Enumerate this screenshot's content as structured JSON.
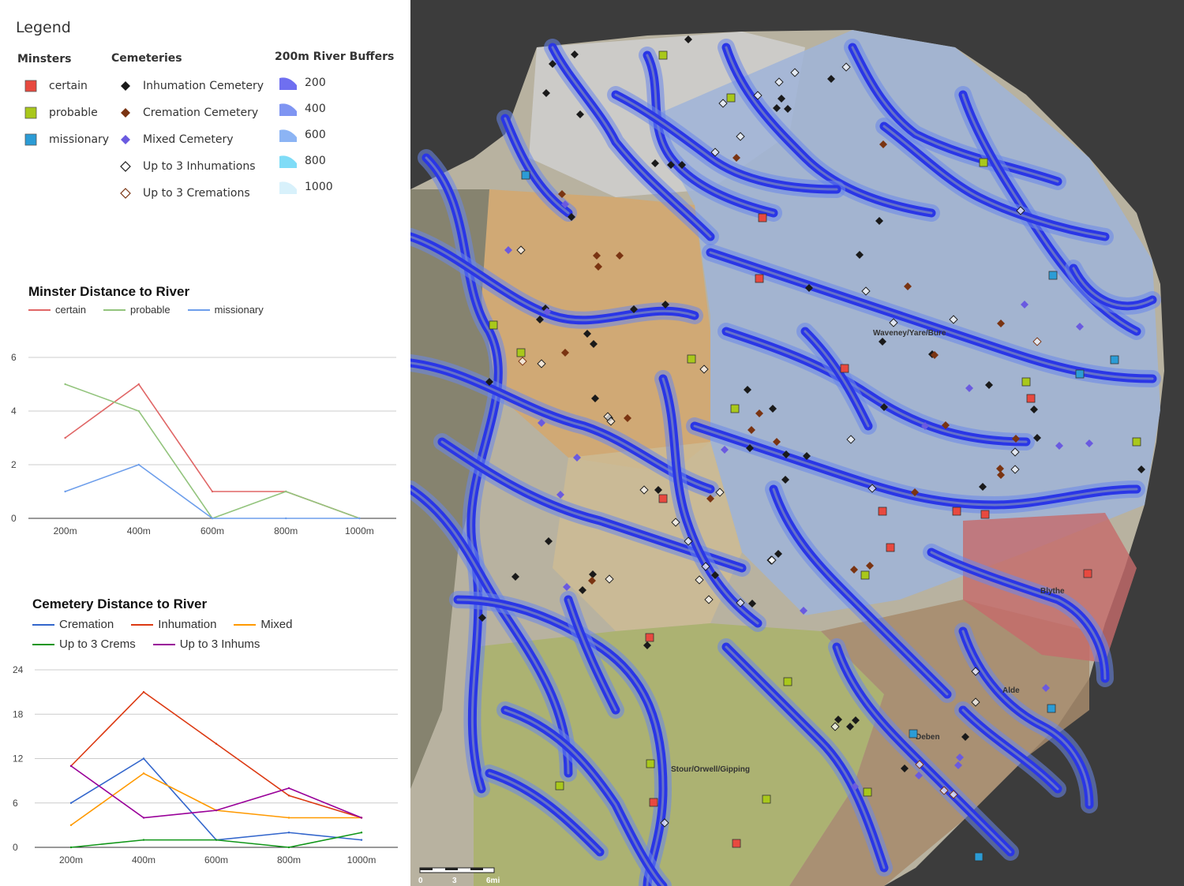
{
  "legend": {
    "title": "Legend",
    "minsters": {
      "heading": "Minsters",
      "items": [
        {
          "label": "certain",
          "color": "#e8493f",
          "icon": "square-icon"
        },
        {
          "label": "probable",
          "color": "#a9c81b",
          "icon": "square-icon"
        },
        {
          "label": "missionary",
          "color": "#2b9cd6",
          "icon": "square-icon"
        }
      ]
    },
    "cemeteries": {
      "heading": "Cemeteries",
      "items": [
        {
          "label": "Inhumation Cemetery",
          "color": "#1a1a1a",
          "icon": "filled-diamond-icon"
        },
        {
          "label": "Cremation Cemetery",
          "color": "#7a3412",
          "icon": "filled-diamond-icon"
        },
        {
          "label": "Mixed Cemetery",
          "color": "#6a5ae0",
          "icon": "filled-diamond-icon"
        },
        {
          "label": "Up to 3 Inhumations",
          "color": "#1a1a1a",
          "icon": "hollow-diamond-icon"
        },
        {
          "label": "Up to 3 Cremations",
          "color": "#7a3412",
          "icon": "hollow-diamond-icon"
        }
      ]
    },
    "buffers": {
      "heading": "200m River Buffers",
      "items": [
        {
          "label": "200",
          "color": "#6f6ff0"
        },
        {
          "label": "400",
          "color": "#7f95f2"
        },
        {
          "label": "600",
          "color": "#8cb4f4"
        },
        {
          "label": "800",
          "color": "#7fdcf7"
        },
        {
          "label": "1000",
          "color": "#d8f1fb"
        }
      ]
    }
  },
  "minster_chart": {
    "title": "Minster Distance to River",
    "legend": [
      {
        "name": "certain",
        "color": "#e06666"
      },
      {
        "name": "probable",
        "color": "#93c47d"
      },
      {
        "name": "missionary",
        "color": "#6d9eeb"
      }
    ]
  },
  "cemetery_chart": {
    "title": "Cemetery Distance to River",
    "legend": [
      {
        "name": "Cremation",
        "color": "#3366cc"
      },
      {
        "name": "Inhumation",
        "color": "#dc3912"
      },
      {
        "name": "Mixed",
        "color": "#ff9900"
      },
      {
        "name": "Up to 3 Crems",
        "color": "#109618"
      },
      {
        "name": "Up to 3 Inhums",
        "color": "#990099"
      }
    ]
  },
  "chart_data": [
    {
      "type": "line",
      "title": "Minster Distance to River",
      "categories": [
        "200m",
        "400m",
        "600m",
        "800m",
        "1000m"
      ],
      "yticks": [
        0,
        2,
        4,
        6
      ],
      "ylim": [
        0,
        6
      ],
      "grid": true,
      "legend_position": "top",
      "series": [
        {
          "name": "certain",
          "color": "#e06666",
          "values": [
            3,
            5,
            1,
            1,
            0
          ]
        },
        {
          "name": "probable",
          "color": "#93c47d",
          "values": [
            5,
            4,
            0,
            1,
            0
          ]
        },
        {
          "name": "missionary",
          "color": "#6d9eeb",
          "values": [
            1,
            2,
            0,
            0,
            0
          ]
        }
      ]
    },
    {
      "type": "line",
      "title": "Cemetery Distance to River",
      "categories": [
        "200m",
        "400m",
        "600m",
        "800m",
        "1000m"
      ],
      "yticks": [
        0,
        6,
        12,
        18,
        24
      ],
      "ylim": [
        0,
        24
      ],
      "grid": true,
      "legend_position": "top",
      "series": [
        {
          "name": "Cremation",
          "color": "#3366cc",
          "values": [
            6,
            12,
            1,
            2,
            1
          ]
        },
        {
          "name": "Inhumation",
          "color": "#dc3912",
          "values": [
            11,
            21,
            14,
            7,
            4
          ]
        },
        {
          "name": "Mixed",
          "color": "#ff9900",
          "values": [
            3,
            10,
            5,
            4,
            4
          ]
        },
        {
          "name": "Up to 3 Crems",
          "color": "#109618",
          "values": [
            0,
            1,
            1,
            0,
            2
          ]
        },
        {
          "name": "Up to 3 Inhums",
          "color": "#990099",
          "values": [
            11,
            4,
            5,
            8,
            4
          ]
        }
      ]
    }
  ],
  "map": {
    "region_labels": [
      "Waveney/Yare/Bure",
      "Blythe",
      "Alde",
      "Deben",
      "Stour/Orwell/Gipping"
    ],
    "scale_labels": [
      "0",
      "3",
      "6mi"
    ]
  }
}
